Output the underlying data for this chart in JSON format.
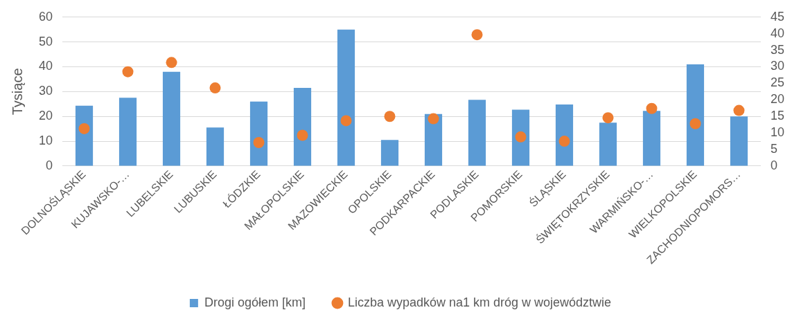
{
  "chart_data": {
    "type": "bar",
    "ylabel": "Tysiące",
    "categories": [
      "DOLNOŚLĄSKIE",
      "KUJAWSKO-…",
      "LUBELSKIE",
      "LUBUSKIE",
      "ŁÓDZKIE",
      "MAŁOPOLSKIE",
      "MAZOWIECKIE",
      "OPOLSKIE",
      "PODKARPACKIE",
      "PODLASKIE",
      "POMORSKIE",
      "ŚLĄSKIE",
      "ŚWIĘTOKRZYSKIE",
      "WARMIŃSKO-…",
      "WIELKOPOLSKIE",
      "ZACHODNIOPOMORS…"
    ],
    "series": [
      {
        "name": "Drogi ogółem [km]",
        "color": "#5b9bd5",
        "values": [
          24.3,
          27.5,
          38,
          15.5,
          26,
          31.5,
          55,
          10.5,
          21,
          26.7,
          22.7,
          24.8,
          17.5,
          22.2,
          41,
          20
        ]
      },
      {
        "name": "Liczba wypadków na1 km dróg w województwie",
        "type": "scatter",
        "axis": "y2",
        "color": "#ed7d31",
        "values": [
          11.3,
          28.5,
          31.3,
          23.6,
          7.1,
          9.3,
          13.7,
          15,
          14.3,
          39.7,
          8.8,
          7.5,
          14.6,
          17.4,
          12.8,
          16.8
        ]
      }
    ],
    "ylim": [
      0,
      60
    ],
    "yticks": [
      0,
      10,
      20,
      30,
      40,
      50,
      60
    ],
    "y2lim": [
      0,
      45
    ],
    "y2ticks": [
      0,
      5,
      10,
      15,
      20,
      25,
      30,
      35,
      40,
      45
    ],
    "grid": "y",
    "legend": "bottom",
    "marker": "circle"
  }
}
